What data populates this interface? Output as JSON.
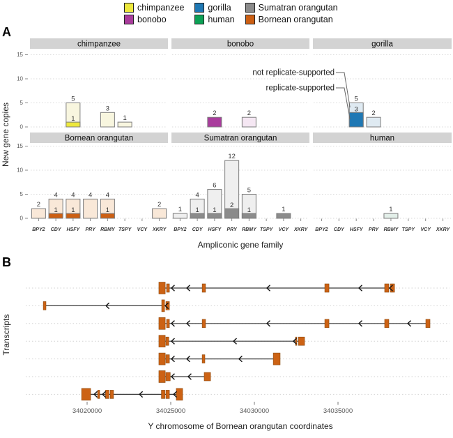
{
  "figure": {
    "panel_a_label": "A",
    "panel_b_label": "B"
  },
  "legend": {
    "items": [
      {
        "label": "chimpanzee",
        "color": "#EDE83C"
      },
      {
        "label": "bonobo",
        "color": "#A93C9C"
      },
      {
        "label": "gorilla",
        "color": "#1F78B4"
      },
      {
        "label": "human",
        "color": "#0CA155"
      },
      {
        "label": "Sumatran orangutan",
        "color": "#8B8B8B"
      },
      {
        "label": "Bornean orangutan",
        "color": "#CC5F13"
      }
    ]
  },
  "chart_data": [
    {
      "type": "bar",
      "panel": "A",
      "xlabel": "Ampliconic gene family",
      "ylabel": "New gene copies",
      "categories": [
        "BPY2",
        "CDY",
        "HSFY",
        "PRY",
        "RBMY",
        "TSPY",
        "VCY",
        "XKRY"
      ],
      "y_ticks": [
        0,
        5,
        10,
        15
      ],
      "ylim": [
        0,
        16
      ],
      "grid": "dotted horizontal at each y tick",
      "stacking_note": "solid segment = replicate-supported, light remainder = not replicate-supported",
      "facets": [
        {
          "species": "chimpanzee",
          "row": 0,
          "col": 0,
          "color": "#EDE83C",
          "light": "#F8F6DF",
          "bars": [
            {
              "category": "HSFY",
              "total": 5,
              "supported": 1
            },
            {
              "category": "RBMY",
              "total": 3,
              "supported": 0
            },
            {
              "category": "TSPY",
              "total": 1,
              "supported": 0
            }
          ]
        },
        {
          "species": "bonobo",
          "row": 0,
          "col": 1,
          "color": "#A93C9C",
          "light": "#F5E7F3",
          "bars": [
            {
              "category": "HSFY",
              "total": 2,
              "supported": 2
            },
            {
              "category": "RBMY",
              "total": 2,
              "supported": 0
            }
          ]
        },
        {
          "species": "gorilla",
          "row": 0,
          "col": 2,
          "color": "#1F78B4",
          "light": "#DFEAF2",
          "bars": [
            {
              "category": "HSFY",
              "total": 5,
              "supported": 3
            },
            {
              "category": "PRY",
              "total": 2,
              "supported": 0
            }
          ]
        },
        {
          "species": "Bornean orangutan",
          "row": 1,
          "col": 0,
          "color": "#CC5F13",
          "light": "#F9E8D8",
          "bars": [
            {
              "category": "BPY2",
              "total": 2,
              "supported": 0
            },
            {
              "category": "CDY",
              "total": 4,
              "supported": 1
            },
            {
              "category": "HSFY",
              "total": 4,
              "supported": 1
            },
            {
              "category": "PRY",
              "total": 4,
              "supported": 0
            },
            {
              "category": "RBMY",
              "total": 4,
              "supported": 1
            },
            {
              "category": "XKRY",
              "total": 2,
              "supported": 0
            }
          ]
        },
        {
          "species": "Sumatran orangutan",
          "row": 1,
          "col": 1,
          "color": "#8B8B8B",
          "light": "#EFEFEF",
          "bars": [
            {
              "category": "BPY2",
              "total": 1,
              "supported": 0
            },
            {
              "category": "CDY",
              "total": 4,
              "supported": 1
            },
            {
              "category": "HSFY",
              "total": 6,
              "supported": 1
            },
            {
              "category": "PRY",
              "total": 12,
              "supported": 2
            },
            {
              "category": "RBMY",
              "total": 5,
              "supported": 1
            },
            {
              "category": "VCY",
              "total": 1,
              "supported": 1
            }
          ]
        },
        {
          "species": "human",
          "row": 1,
          "col": 2,
          "color": "#0CA155",
          "light": "#E3EFE9",
          "bars": [
            {
              "category": "RBMY",
              "total": 1,
              "supported": 0
            }
          ]
        }
      ],
      "annotation": {
        "labels": [
          "not replicate-supported",
          "replicate-supported"
        ],
        "target": {
          "facet": "gorilla",
          "category": "HSFY"
        }
      }
    },
    {
      "type": "transcript_map",
      "panel": "B",
      "xlabel": "Y chromosome of Bornean orangutan coordinates",
      "ylabel": "Transcripts",
      "x_ticks": [
        34020000,
        34025000,
        34030000,
        34035000
      ],
      "xlim": [
        34016300,
        34041700
      ],
      "strand": "minus (left-pointing arrows)",
      "exon_color": "#CC6214",
      "transcripts": [
        {
          "exons": [
            [
              34024290,
              34024670,
              "tall"
            ],
            [
              34024750,
              34024920
            ],
            [
              34026880,
              34027080
            ],
            [
              34034210,
              34034460
            ],
            [
              34037790,
              34038040
            ],
            [
              34038130,
              34038380
            ]
          ],
          "arrows": [
            34025040,
            34025960,
            34030750,
            34036250,
            34038080
          ]
        },
        {
          "exons": [
            [
              34017380,
              34017540
            ],
            [
              34024460,
              34024630,
              "tall"
            ],
            [
              34024710,
              34024920
            ]
          ],
          "arrows": [
            34021130,
            34024670
          ]
        },
        {
          "exons": [
            [
              34024290,
              34024670,
              "tall"
            ],
            [
              34024750,
              34024920
            ],
            [
              34026880,
              34027080
            ],
            [
              34034210,
              34034460
            ],
            [
              34037790,
              34038040
            ],
            [
              34040250,
              34040500
            ]
          ],
          "arrows": [
            34025040,
            34025960,
            34030750,
            34036250,
            34039170
          ]
        },
        {
          "exons": [
            [
              34024290,
              34024670,
              "tall"
            ],
            [
              34024710,
              34024880
            ],
            [
              34032460,
              34032540
            ],
            [
              34032630,
              34033000
            ]
          ],
          "arrows": [
            34025040,
            34028750,
            34032330
          ]
        },
        {
          "exons": [
            [
              34024290,
              34024670,
              "tall"
            ],
            [
              34024710,
              34024920
            ],
            [
              34026880,
              34027040
            ],
            [
              34031130,
              34031540,
              "tall"
            ]
          ],
          "arrows": [
            34025040,
            34025960,
            34029080
          ]
        },
        {
          "exons": [
            [
              34024290,
              34024670,
              "tall"
            ],
            [
              34024710,
              34024970
            ],
            [
              34027000,
              34027380
            ]
          ],
          "arrows": [
            34025040,
            34026040
          ]
        },
        {
          "exons": [
            [
              34019670,
              34020210,
              "tall"
            ],
            [
              34020630,
              34020750
            ],
            [
              34021100,
              34021310
            ],
            [
              34021380,
              34021580
            ],
            [
              34024440,
              34024650
            ],
            [
              34024710,
              34024920
            ],
            [
              34025330,
              34025710,
              "tall"
            ]
          ],
          "arrows": [
            34020420,
            34020920,
            34023130,
            34025170
          ]
        }
      ]
    }
  ]
}
